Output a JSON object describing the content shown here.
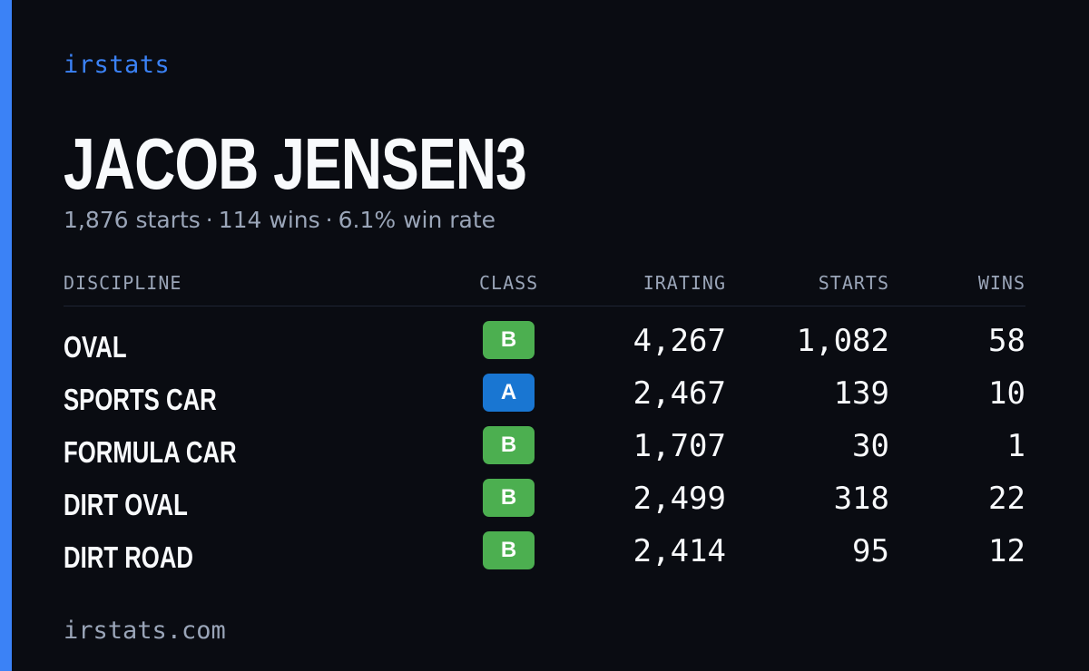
{
  "brand": "irstats",
  "driver": {
    "name": "JACOB JENSEN3",
    "starts": "1,876 starts",
    "wins": "114 wins",
    "win_rate": "6.1% win rate",
    "separator": "·"
  },
  "table": {
    "headers": {
      "discipline": "DISCIPLINE",
      "class": "CLASS",
      "irating": "IRATING",
      "starts": "STARTS",
      "wins": "WINS"
    },
    "rows": [
      {
        "discipline": "OVAL",
        "class": "B",
        "class_color": "#4caf50",
        "irating": "4,267",
        "starts": "1,082",
        "wins": "58"
      },
      {
        "discipline": "SPORTS CAR",
        "class": "A",
        "class_color": "#1976d2",
        "irating": "2,467",
        "starts": "139",
        "wins": "10"
      },
      {
        "discipline": "FORMULA CAR",
        "class": "B",
        "class_color": "#4caf50",
        "irating": "1,707",
        "starts": "30",
        "wins": "1"
      },
      {
        "discipline": "DIRT OVAL",
        "class": "B",
        "class_color": "#4caf50",
        "irating": "2,499",
        "starts": "318",
        "wins": "22"
      },
      {
        "discipline": "DIRT ROAD",
        "class": "B",
        "class_color": "#4caf50",
        "irating": "2,414",
        "starts": "95",
        "wins": "12"
      }
    ]
  },
  "footer": "irstats.com",
  "colors": {
    "accent": "#3b82f6",
    "background": "#0a0c12",
    "muted_text": "#9aa5b8",
    "class_a": "#1976d2",
    "class_b": "#4caf50"
  }
}
